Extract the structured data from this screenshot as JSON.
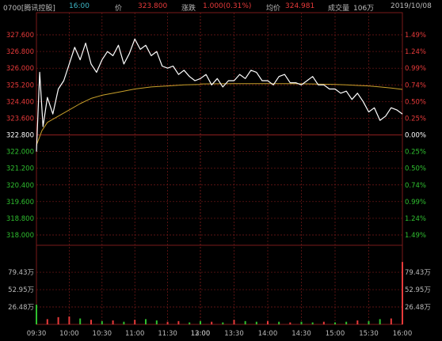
{
  "header": {
    "code_name": "0700[腾讯控股]",
    "time": "16:00",
    "price_label": "价",
    "price": "323.800",
    "change_label": "涨跌",
    "change": "1.000(0.31%)",
    "avg_label": "均价",
    "avg_price": "324.981",
    "volume_label": "成交量",
    "volume": "106万",
    "date": "2019/10/08"
  },
  "colors": {
    "background": "#000000",
    "price_line": "#ffffff",
    "avg_line": "#c8a02a",
    "up": "#e83a3a",
    "down": "#2fbf2f",
    "grid": "#7a1a1a",
    "header_code": "#bbbbbb",
    "header_time": "#3db8c8"
  },
  "chart_data": {
    "type": "line",
    "title": "",
    "price_axis": {
      "ylim": [
        318.0,
        327.6
      ],
      "prev_close": 322.8,
      "left_ticks": [
        "327.600",
        "326.800",
        "326.000",
        "325.200",
        "324.400",
        "323.600",
        "322.800",
        "322.000",
        "321.200",
        "320.400",
        "319.600",
        "318.800",
        "318.000"
      ],
      "right_ticks": [
        "1.49%",
        "1.24%",
        "0.99%",
        "0.74%",
        "0.50%",
        "0.25%",
        "0.00%",
        "0.25%",
        "0.50%",
        "0.74%",
        "0.99%",
        "1.24%",
        "1.49%"
      ]
    },
    "volume_axis": {
      "left_ticks": [
        "79.43万",
        "52.95万",
        "26.48万"
      ],
      "right_ticks": [
        "79.43万",
        "52.95万",
        "26.48万"
      ]
    },
    "x_ticks": [
      "09:30",
      "10:00",
      "10:30",
      "11:00",
      "11:30",
      "12:00",
      "13:00",
      "13:30",
      "14:00",
      "14:30",
      "15:00",
      "15:30",
      "16:00"
    ],
    "series": [
      {
        "x": [
          "09:30",
          "09:33",
          "09:36",
          "09:40",
          "09:45",
          "09:50",
          "09:55",
          "10:00",
          "10:05",
          "10:10",
          "10:15",
          "10:20",
          "10:25",
          "10:30",
          "10:35",
          "10:40",
          "10:45",
          "10:50",
          "10:55",
          "11:00",
          "11:05",
          "11:10",
          "11:15",
          "11:20",
          "11:25",
          "11:30",
          "11:35",
          "11:40",
          "11:45",
          "11:50",
          "11:55",
          "12:00",
          "13:00",
          "13:05",
          "13:10",
          "13:15",
          "13:20",
          "13:25",
          "13:30",
          "13:35",
          "13:40",
          "13:45",
          "13:50",
          "13:55",
          "14:00",
          "14:05",
          "14:10",
          "14:15",
          "14:20",
          "14:25",
          "14:30",
          "14:35",
          "14:40",
          "14:45",
          "14:50",
          "14:55",
          "15:00",
          "15:05",
          "15:10",
          "15:15",
          "15:20",
          "15:25",
          "15:30",
          "15:35",
          "15:40",
          "15:45",
          "15:50",
          "15:55",
          "16:00"
        ],
        "values": [
          322.0,
          325.8,
          323.2,
          324.6,
          323.8,
          325.0,
          325.4,
          326.2,
          327.0,
          326.4,
          327.2,
          326.2,
          325.8,
          326.4,
          326.8,
          326.6,
          327.1,
          326.2,
          326.7,
          327.4,
          326.9,
          327.1,
          326.6,
          326.8,
          326.1,
          326.0,
          326.1,
          325.7,
          325.9,
          325.6,
          325.4,
          325.5,
          325.5,
          325.7,
          325.2,
          325.5,
          325.1,
          325.4,
          325.4,
          325.7,
          325.5,
          325.9,
          325.8,
          325.4,
          325.4,
          325.2,
          325.6,
          325.7,
          325.3,
          325.3,
          325.2,
          325.4,
          325.6,
          325.2,
          325.2,
          325.0,
          325.0,
          324.8,
          324.9,
          324.5,
          324.8,
          324.4,
          323.9,
          324.1,
          323.5,
          323.7,
          324.1,
          324.0,
          323.8
        ]
      },
      {
        "x": [
          "09:30",
          "09:35",
          "09:40",
          "09:50",
          "10:00",
          "10:10",
          "10:20",
          "10:30",
          "10:45",
          "11:00",
          "11:15",
          "11:30",
          "11:45",
          "12:00",
          "13:00",
          "13:15",
          "13:30",
          "13:45",
          "14:00",
          "14:15",
          "14:30",
          "14:45",
          "15:00",
          "15:10",
          "15:20",
          "15:30",
          "15:40",
          "15:50",
          "16:00"
        ],
        "values": [
          322.3,
          323.0,
          323.4,
          323.7,
          324.0,
          324.3,
          324.55,
          324.7,
          324.85,
          325.0,
          325.1,
          325.15,
          325.2,
          325.22,
          325.24,
          325.25,
          325.26,
          325.26,
          325.26,
          325.26,
          325.25,
          325.24,
          325.22,
          325.2,
          325.17,
          325.15,
          325.1,
          325.05,
          324.98
        ]
      }
    ],
    "volume": {
      "x": [
        "09:30",
        "09:40",
        "09:50",
        "10:00",
        "10:10",
        "10:20",
        "10:30",
        "10:40",
        "10:50",
        "11:00",
        "11:10",
        "11:20",
        "11:30",
        "11:40",
        "11:50",
        "12:00",
        "13:00",
        "13:10",
        "13:20",
        "13:30",
        "13:40",
        "13:50",
        "14:00",
        "14:10",
        "14:20",
        "14:30",
        "14:40",
        "14:50",
        "15:00",
        "15:10",
        "15:20",
        "15:30",
        "15:40",
        "15:50",
        "16:00"
      ],
      "values": [
        30.0,
        8.0,
        11.0,
        12.0,
        9.0,
        7.0,
        5.0,
        6.0,
        4.0,
        7.0,
        8.0,
        6.0,
        4.0,
        5.0,
        3.0,
        3.0,
        5.0,
        4.0,
        3.0,
        7.0,
        5.0,
        4.0,
        5.0,
        4.0,
        3.0,
        4.0,
        3.0,
        4.0,
        3.0,
        4.0,
        6.0,
        5.0,
        8.0,
        9.0,
        95.0
      ],
      "direction": [
        "down",
        "up",
        "up",
        "up",
        "down",
        "up",
        "down",
        "up",
        "down",
        "up",
        "down",
        "down",
        "up",
        "up",
        "down",
        "up",
        "down",
        "up",
        "down",
        "up",
        "down",
        "down",
        "up",
        "down",
        "up",
        "down",
        "down",
        "up",
        "down",
        "down",
        "up",
        "down",
        "down",
        "up",
        "up"
      ]
    }
  }
}
